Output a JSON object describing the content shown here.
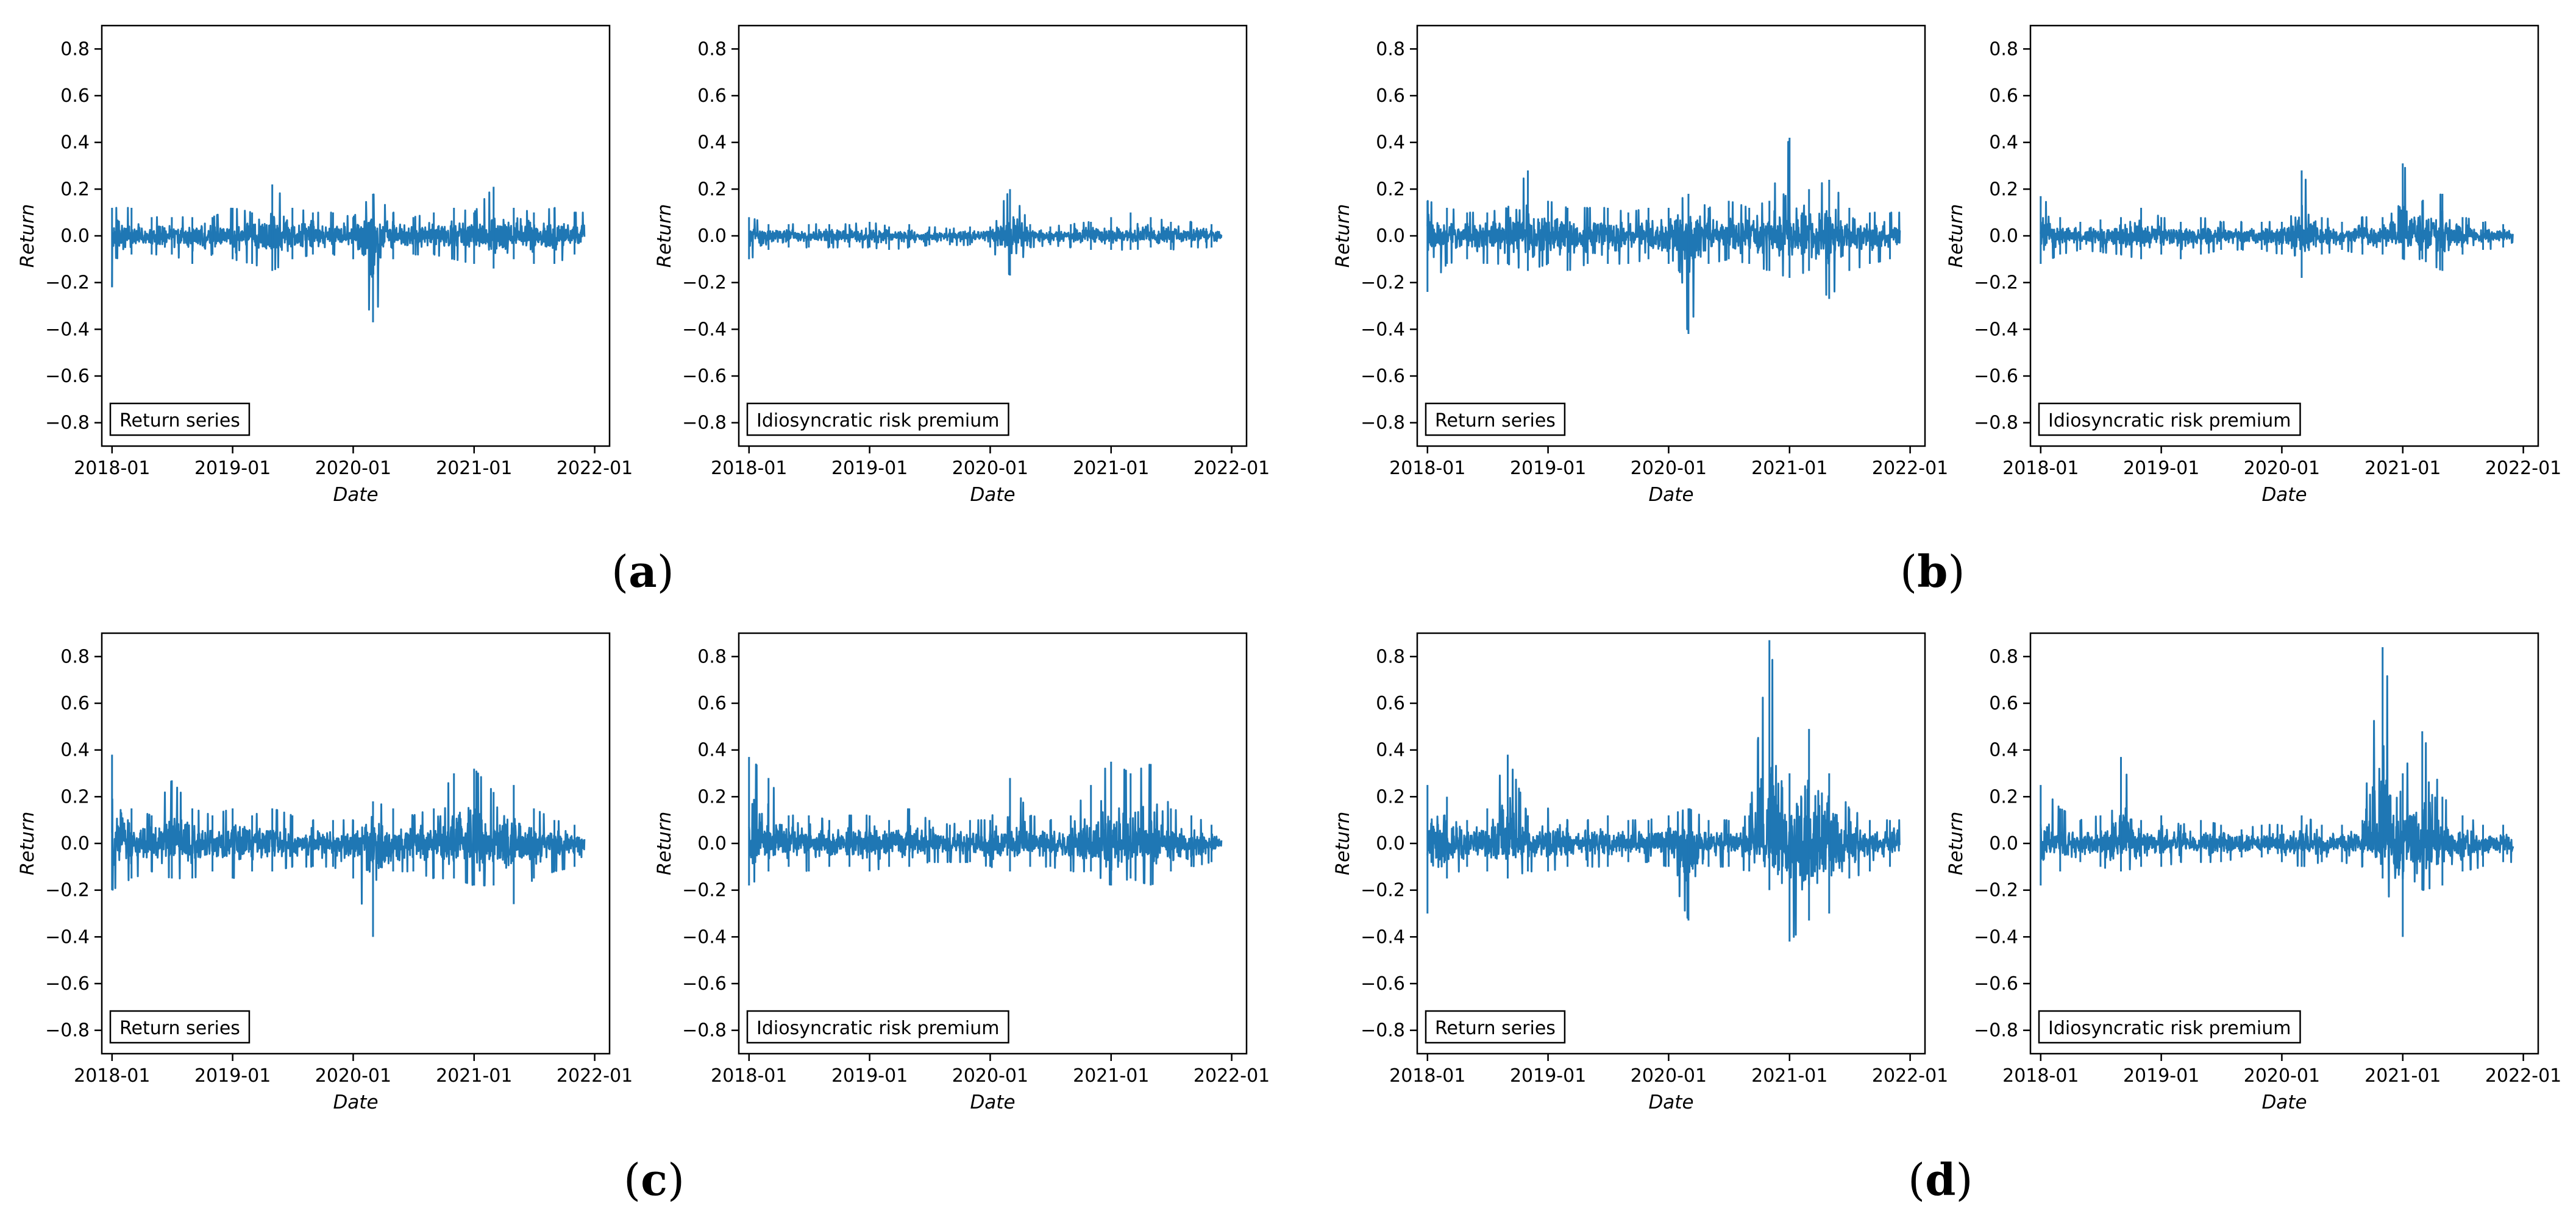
{
  "figure": {
    "panels": [
      {
        "label": "a",
        "plots": [
          0,
          1
        ]
      },
      {
        "label": "b",
        "plots": [
          2,
          3
        ]
      },
      {
        "label": "c",
        "plots": [
          4,
          5
        ]
      },
      {
        "label": "d",
        "plots": [
          6,
          7
        ]
      }
    ],
    "line_color": "#1f77b4"
  },
  "chart_data": [
    {
      "type": "line",
      "legend_text": "Return series",
      "xlabel": "Date",
      "ylabel": "Return",
      "x_range": [
        "2018-01-01",
        "2021-12-01"
      ],
      "ylim": [
        -0.9,
        0.9
      ],
      "xticks": [
        "2018-01",
        "2019-01",
        "2020-01",
        "2021-01",
        "2022-01"
      ],
      "yticks": [
        "0.8",
        "0.6",
        "0.4",
        "0.2",
        "0.0",
        "−0.2",
        "−0.4",
        "−0.6",
        "−0.8"
      ],
      "x_dates": [
        "2018-01-01",
        "2018-03-01",
        "2018-05-01",
        "2018-07-01",
        "2018-09-01",
        "2018-11-01",
        "2019-01-01",
        "2019-03-01",
        "2019-05-01",
        "2019-07-01",
        "2019-09-01",
        "2019-11-01",
        "2020-01-01",
        "2020-03-01",
        "2020-05-01",
        "2020-07-01",
        "2020-09-01",
        "2020-11-01",
        "2021-01-01",
        "2021-03-01",
        "2021-05-01",
        "2021-07-01",
        "2021-09-01",
        "2021-11-01"
      ],
      "envelope_upper": [
        0.12,
        0.12,
        0.08,
        0.08,
        0.08,
        0.08,
        0.12,
        0.1,
        0.22,
        0.12,
        0.1,
        0.1,
        0.08,
        0.18,
        0.1,
        0.08,
        0.1,
        0.12,
        0.1,
        0.21,
        0.12,
        0.1,
        0.12,
        0.1
      ],
      "envelope_lower": [
        -0.22,
        -0.08,
        -0.08,
        -0.08,
        -0.12,
        -0.08,
        -0.1,
        -0.12,
        -0.15,
        -0.1,
        -0.08,
        -0.08,
        -0.1,
        -0.37,
        -0.1,
        -0.08,
        -0.08,
        -0.1,
        -0.12,
        -0.14,
        -0.1,
        -0.12,
        -0.12,
        -0.08
      ]
    },
    {
      "type": "line",
      "legend_text": "Idiosyncratic risk premium",
      "xlabel": "Date",
      "ylabel": "Return",
      "x_range": [
        "2018-01-01",
        "2021-12-01"
      ],
      "ylim": [
        -0.9,
        0.9
      ],
      "xticks": [
        "2018-01",
        "2019-01",
        "2020-01",
        "2021-01",
        "2022-01"
      ],
      "yticks": [
        "0.8",
        "0.6",
        "0.4",
        "0.2",
        "0.0",
        "−0.2",
        "−0.4",
        "−0.6",
        "−0.8"
      ],
      "x_dates": [
        "2018-01-01",
        "2018-03-01",
        "2018-05-01",
        "2018-07-01",
        "2018-09-01",
        "2018-11-01",
        "2019-01-01",
        "2019-03-01",
        "2019-05-01",
        "2019-07-01",
        "2019-09-01",
        "2019-11-01",
        "2020-01-01",
        "2020-03-01",
        "2020-05-01",
        "2020-07-01",
        "2020-09-01",
        "2020-11-01",
        "2021-01-01",
        "2021-03-01",
        "2021-05-01",
        "2021-07-01",
        "2021-09-01",
        "2021-11-01"
      ],
      "envelope_upper": [
        0.08,
        0.05,
        0.05,
        0.05,
        0.05,
        0.05,
        0.06,
        0.04,
        0.05,
        0.04,
        0.03,
        0.04,
        0.04,
        0.2,
        0.05,
        0.04,
        0.05,
        0.06,
        0.08,
        0.1,
        0.08,
        0.06,
        0.06,
        0.05
      ],
      "envelope_lower": [
        -0.1,
        -0.06,
        -0.05,
        -0.05,
        -0.05,
        -0.05,
        -0.05,
        -0.06,
        -0.05,
        -0.04,
        -0.04,
        -0.04,
        -0.05,
        -0.17,
        -0.05,
        -0.04,
        -0.05,
        -0.06,
        -0.06,
        -0.06,
        -0.05,
        -0.06,
        -0.05,
        -0.05
      ]
    },
    {
      "type": "line",
      "legend_text": "Return series",
      "xlabel": "Date",
      "ylabel": "Return",
      "x_range": [
        "2018-01-01",
        "2021-12-01"
      ],
      "ylim": [
        -0.9,
        0.9
      ],
      "xticks": [
        "2018-01",
        "2019-01",
        "2020-01",
        "2021-01",
        "2022-01"
      ],
      "yticks": [
        "0.8",
        "0.6",
        "0.4",
        "0.2",
        "0.0",
        "−0.2",
        "−0.4",
        "−0.6",
        "−0.8"
      ],
      "x_dates": [
        "2018-01-01",
        "2018-03-01",
        "2018-05-01",
        "2018-07-01",
        "2018-09-01",
        "2018-11-01",
        "2019-01-01",
        "2019-03-01",
        "2019-05-01",
        "2019-07-01",
        "2019-09-01",
        "2019-11-01",
        "2020-01-01",
        "2020-03-01",
        "2020-05-01",
        "2020-07-01",
        "2020-09-01",
        "2020-11-01",
        "2021-01-01",
        "2021-03-01",
        "2021-05-01",
        "2021-07-01",
        "2021-09-01",
        "2021-11-01"
      ],
      "envelope_upper": [
        0.15,
        0.12,
        0.1,
        0.1,
        0.12,
        0.28,
        0.15,
        0.12,
        0.12,
        0.12,
        0.1,
        0.12,
        0.12,
        0.18,
        0.12,
        0.15,
        0.12,
        0.15,
        0.42,
        0.2,
        0.24,
        0.12,
        0.1,
        0.1
      ],
      "envelope_lower": [
        -0.24,
        -0.12,
        -0.1,
        -0.12,
        -0.12,
        -0.15,
        -0.12,
        -0.15,
        -0.12,
        -0.12,
        -0.12,
        -0.1,
        -0.12,
        -0.42,
        -0.12,
        -0.1,
        -0.12,
        -0.15,
        -0.18,
        -0.15,
        -0.27,
        -0.15,
        -0.12,
        -0.1
      ]
    },
    {
      "type": "line",
      "legend_text": "Idiosyncratic risk premium",
      "xlabel": "Date",
      "ylabel": "Return",
      "x_range": [
        "2018-01-01",
        "2021-12-01"
      ],
      "ylim": [
        -0.9,
        0.9
      ],
      "xticks": [
        "2018-01",
        "2019-01",
        "2020-01",
        "2021-01",
        "2022-01"
      ],
      "yticks": [
        "0.8",
        "0.6",
        "0.4",
        "0.2",
        "0.0",
        "−0.2",
        "−0.4",
        "−0.6",
        "−0.8"
      ],
      "x_dates": [
        "2018-01-01",
        "2018-03-01",
        "2018-05-01",
        "2018-07-01",
        "2018-09-01",
        "2018-11-01",
        "2019-01-01",
        "2019-03-01",
        "2019-05-01",
        "2019-07-01",
        "2019-09-01",
        "2019-11-01",
        "2020-01-01",
        "2020-03-01",
        "2020-05-01",
        "2020-07-01",
        "2020-09-01",
        "2020-11-01",
        "2021-01-01",
        "2021-03-01",
        "2021-05-01",
        "2021-07-01",
        "2021-09-01",
        "2021-11-01"
      ],
      "envelope_upper": [
        0.17,
        0.08,
        0.06,
        0.07,
        0.08,
        0.12,
        0.08,
        0.06,
        0.08,
        0.06,
        0.06,
        0.06,
        0.06,
        0.28,
        0.08,
        0.06,
        0.08,
        0.08,
        0.31,
        0.15,
        0.18,
        0.08,
        0.06,
        0.05
      ],
      "envelope_lower": [
        -0.12,
        -0.08,
        -0.06,
        -0.07,
        -0.08,
        -0.1,
        -0.08,
        -0.1,
        -0.08,
        -0.06,
        -0.06,
        -0.06,
        -0.08,
        -0.18,
        -0.08,
        -0.06,
        -0.08,
        -0.08,
        -0.1,
        -0.1,
        -0.15,
        -0.08,
        -0.06,
        -0.05
      ]
    },
    {
      "type": "line",
      "legend_text": "Return series",
      "xlabel": "Date",
      "ylabel": "Return",
      "x_range": [
        "2018-01-01",
        "2021-12-01"
      ],
      "ylim": [
        -0.9,
        0.9
      ],
      "xticks": [
        "2018-01",
        "2019-01",
        "2020-01",
        "2021-01",
        "2022-01"
      ],
      "yticks": [
        "0.8",
        "0.6",
        "0.4",
        "0.2",
        "0.0",
        "−0.2",
        "−0.4",
        "−0.6",
        "−0.8"
      ],
      "x_dates": [
        "2018-01-01",
        "2018-03-01",
        "2018-05-01",
        "2018-07-01",
        "2018-09-01",
        "2018-11-01",
        "2019-01-01",
        "2019-03-01",
        "2019-05-01",
        "2019-07-01",
        "2019-09-01",
        "2019-11-01",
        "2020-01-01",
        "2020-03-01",
        "2020-05-01",
        "2020-07-01",
        "2020-09-01",
        "2020-11-01",
        "2021-01-01",
        "2021-03-01",
        "2021-05-01",
        "2021-07-01",
        "2021-09-01",
        "2021-11-01"
      ],
      "envelope_upper": [
        0.38,
        0.15,
        0.12,
        0.27,
        0.15,
        0.12,
        0.15,
        0.12,
        0.15,
        0.12,
        0.1,
        0.1,
        0.1,
        0.18,
        0.15,
        0.12,
        0.15,
        0.3,
        0.32,
        0.22,
        0.25,
        0.15,
        0.1,
        0.08
      ],
      "envelope_lower": [
        -0.2,
        -0.15,
        -0.12,
        -0.15,
        -0.15,
        -0.12,
        -0.15,
        -0.12,
        -0.12,
        -0.1,
        -0.1,
        -0.1,
        -0.15,
        -0.4,
        -0.12,
        -0.12,
        -0.15,
        -0.15,
        -0.18,
        -0.18,
        -0.26,
        -0.15,
        -0.12,
        -0.1
      ]
    },
    {
      "type": "line",
      "legend_text": "Idiosyncratic risk premium",
      "xlabel": "Date",
      "ylabel": "Return",
      "x_range": [
        "2018-01-01",
        "2021-12-01"
      ],
      "ylim": [
        -0.9,
        0.9
      ],
      "xticks": [
        "2018-01",
        "2019-01",
        "2020-01",
        "2021-01",
        "2022-01"
      ],
      "yticks": [
        "0.8",
        "0.6",
        "0.4",
        "0.2",
        "0.0",
        "−0.2",
        "−0.4",
        "−0.6",
        "−0.8"
      ],
      "x_dates": [
        "2018-01-01",
        "2018-03-01",
        "2018-05-01",
        "2018-07-01",
        "2018-09-01",
        "2018-11-01",
        "2019-01-01",
        "2019-03-01",
        "2019-05-01",
        "2019-07-01",
        "2019-09-01",
        "2019-11-01",
        "2020-01-01",
        "2020-03-01",
        "2020-05-01",
        "2020-07-01",
        "2020-09-01",
        "2020-11-01",
        "2021-01-01",
        "2021-03-01",
        "2021-05-01",
        "2021-07-01",
        "2021-09-01",
        "2021-11-01"
      ],
      "envelope_upper": [
        0.37,
        0.28,
        0.12,
        0.12,
        0.1,
        0.12,
        0.12,
        0.1,
        0.15,
        0.1,
        0.08,
        0.1,
        0.1,
        0.28,
        0.12,
        0.1,
        0.12,
        0.25,
        0.35,
        0.3,
        0.34,
        0.15,
        0.12,
        0.08
      ],
      "envelope_lower": [
        -0.18,
        -0.12,
        -0.1,
        -0.12,
        -0.1,
        -0.1,
        -0.12,
        -0.1,
        -0.1,
        -0.08,
        -0.08,
        -0.08,
        -0.1,
        -0.12,
        -0.1,
        -0.1,
        -0.12,
        -0.12,
        -0.18,
        -0.15,
        -0.18,
        -0.12,
        -0.1,
        -0.08
      ]
    },
    {
      "type": "line",
      "legend_text": "Return series",
      "xlabel": "Date",
      "ylabel": "Return",
      "x_range": [
        "2018-01-01",
        "2021-12-01"
      ],
      "ylim": [
        -0.9,
        0.9
      ],
      "xticks": [
        "2018-01",
        "2019-01",
        "2020-01",
        "2021-01",
        "2022-01"
      ],
      "yticks": [
        "0.8",
        "0.6",
        "0.4",
        "0.2",
        "0.0",
        "−0.2",
        "−0.4",
        "−0.6",
        "−0.8"
      ],
      "x_dates": [
        "2018-01-01",
        "2018-03-01",
        "2018-05-01",
        "2018-07-01",
        "2018-09-01",
        "2018-11-01",
        "2019-01-01",
        "2019-03-01",
        "2019-05-01",
        "2019-07-01",
        "2019-09-01",
        "2019-11-01",
        "2020-01-01",
        "2020-03-01",
        "2020-05-01",
        "2020-07-01",
        "2020-09-01",
        "2020-11-01",
        "2021-01-01",
        "2021-03-01",
        "2021-05-01",
        "2021-07-01",
        "2021-09-01",
        "2021-11-01"
      ],
      "envelope_upper": [
        0.25,
        0.2,
        0.1,
        0.15,
        0.38,
        0.12,
        0.15,
        0.1,
        0.1,
        0.12,
        0.1,
        0.1,
        0.12,
        0.15,
        0.1,
        0.1,
        0.12,
        0.87,
        0.3,
        0.49,
        0.3,
        0.15,
        0.1,
        0.1
      ],
      "envelope_lower": [
        -0.3,
        -0.15,
        -0.1,
        -0.12,
        -0.15,
        -0.12,
        -0.12,
        -0.1,
        -0.1,
        -0.1,
        -0.08,
        -0.08,
        -0.1,
        -0.33,
        -0.1,
        -0.1,
        -0.12,
        -0.2,
        -0.42,
        -0.33,
        -0.3,
        -0.15,
        -0.12,
        -0.1
      ]
    },
    {
      "type": "line",
      "legend_text": "Idiosyncratic risk premium",
      "xlabel": "Date",
      "ylabel": "Return",
      "x_range": [
        "2018-01-01",
        "2021-12-01"
      ],
      "ylim": [
        -0.9,
        0.9
      ],
      "xticks": [
        "2018-01",
        "2019-01",
        "2020-01",
        "2021-01",
        "2022-01"
      ],
      "yticks": [
        "0.8",
        "0.6",
        "0.4",
        "0.2",
        "0.0",
        "−0.2",
        "−0.4",
        "−0.6",
        "−0.8"
      ],
      "x_dates": [
        "2018-01-01",
        "2018-03-01",
        "2018-05-01",
        "2018-07-01",
        "2018-09-01",
        "2018-11-01",
        "2019-01-01",
        "2019-03-01",
        "2019-05-01",
        "2019-07-01",
        "2019-09-01",
        "2019-11-01",
        "2020-01-01",
        "2020-03-01",
        "2020-05-01",
        "2020-07-01",
        "2020-09-01",
        "2020-11-01",
        "2021-01-01",
        "2021-03-01",
        "2021-05-01",
        "2021-07-01",
        "2021-09-01",
        "2021-11-01"
      ],
      "envelope_upper": [
        0.25,
        0.15,
        0.1,
        0.12,
        0.37,
        0.1,
        0.12,
        0.08,
        0.1,
        0.08,
        0.06,
        0.08,
        0.08,
        0.12,
        0.08,
        0.08,
        0.1,
        0.84,
        0.3,
        0.48,
        0.2,
        0.12,
        0.08,
        0.08
      ],
      "envelope_lower": [
        -0.18,
        -0.12,
        -0.08,
        -0.1,
        -0.12,
        -0.1,
        -0.1,
        -0.08,
        -0.08,
        -0.08,
        -0.06,
        -0.06,
        -0.08,
        -0.1,
        -0.08,
        -0.08,
        -0.1,
        -0.15,
        -0.4,
        -0.2,
        -0.18,
        -0.12,
        -0.1,
        -0.08
      ]
    }
  ]
}
